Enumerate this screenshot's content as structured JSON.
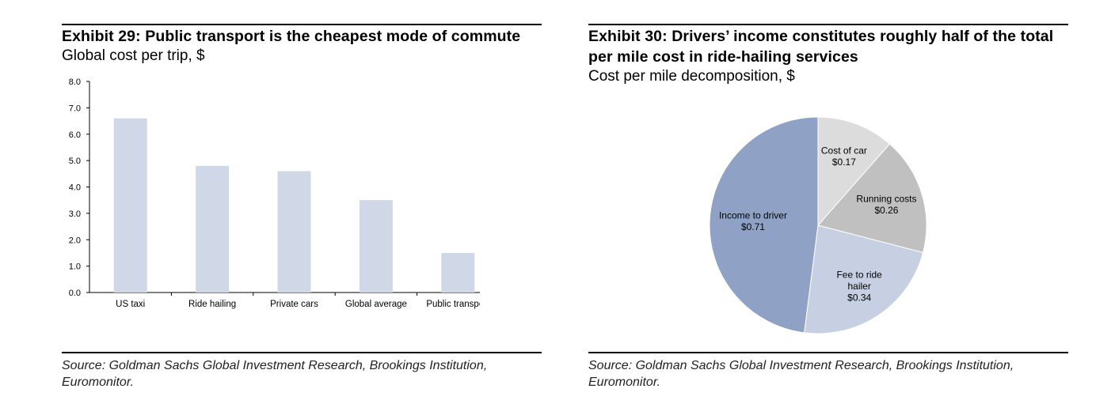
{
  "exhibits": [
    {
      "title": "Exhibit 29: Public transport is the cheapest mode of commute",
      "subtitle": "Global cost per trip, $",
      "source": "Source: Goldman Sachs Global Investment Research, Brookings Institution, Euromonitor."
    },
    {
      "title": "Exhibit 30: Drivers’ income constitutes roughly half of the total per mile cost in ride-hailing services",
      "subtitle": "Cost per mile decomposition, $",
      "source": "Source: Goldman Sachs Global Investment Research, Brookings Institution, Euromonitor."
    }
  ],
  "chart_data": [
    {
      "type": "bar",
      "title": "Global cost per trip, $",
      "categories": [
        "US taxi",
        "Ride hailing",
        "Private cars",
        "Global average",
        "Public transport"
      ],
      "values": [
        6.6,
        4.8,
        4.6,
        3.5,
        1.5
      ],
      "ytick_labels": [
        "0.0",
        "1.0",
        "2.0",
        "3.0",
        "4.0",
        "5.0",
        "6.0",
        "7.0",
        "8.0"
      ],
      "ylim": [
        0,
        8
      ],
      "xlabel": "",
      "ylabel": "",
      "grid": false,
      "bar_color": "#d0d8e8"
    },
    {
      "type": "pie",
      "title": "Cost per mile decomposition, $",
      "slices": [
        {
          "name": "Cost of car",
          "value": 0.17,
          "label": "$0.17",
          "color": "#dcdcdc"
        },
        {
          "name": "Running costs",
          "value": 0.26,
          "label": "$0.26",
          "color": "#c0c0c0"
        },
        {
          "name": "Fee to ride hailer",
          "value": 0.34,
          "label": "$0.34",
          "color": "#c6d0e2"
        },
        {
          "name": "Income to driver",
          "value": 0.71,
          "label": "$0.71",
          "color": "#8fa2c6"
        }
      ],
      "slice_label_lines": [
        [
          "Cost of car"
        ],
        [
          "Running costs"
        ],
        [
          "Fee to ride",
          "hailer"
        ],
        [
          "Income to driver"
        ]
      ]
    }
  ]
}
